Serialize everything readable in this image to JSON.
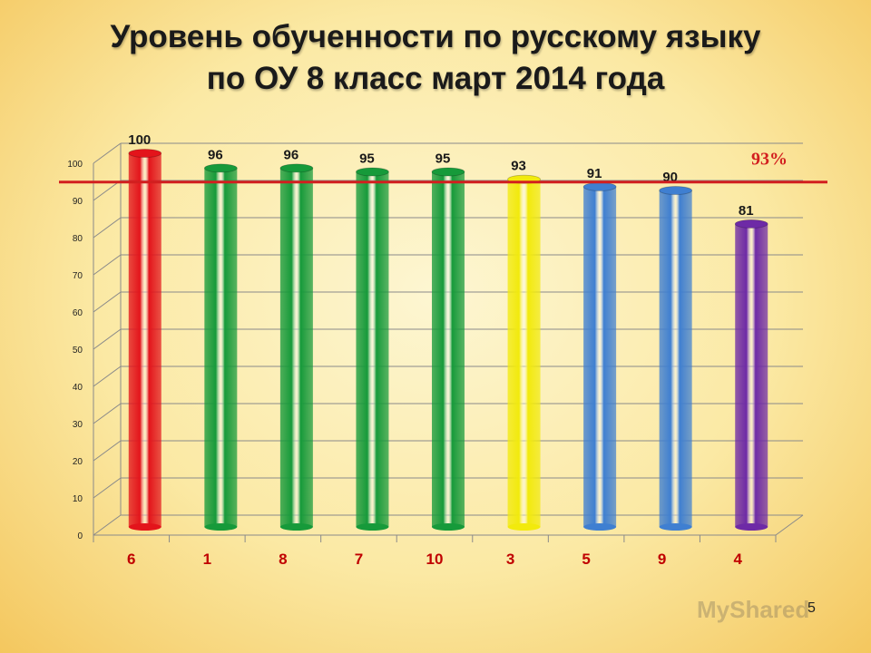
{
  "slide": {
    "title_line1": "Уровень обученности по русскому языку",
    "title_line2": "по ОУ 8 класс март 2014 года",
    "watermark": "MyShared",
    "page_number": "5"
  },
  "chart_data": {
    "type": "bar",
    "title": "Уровень обученности по русскому языку по ОУ 8 класс март 2014 года",
    "categories": [
      "6",
      "1",
      "8",
      "7",
      "10",
      "3",
      "5",
      "9",
      "4"
    ],
    "values": [
      100,
      96,
      96,
      95,
      95,
      93,
      91,
      90,
      81
    ],
    "value_labels": [
      "100",
      "96",
      "96",
      "95",
      "95",
      "93",
      "91",
      "90",
      "81"
    ],
    "bar_colors": [
      "#e3141b",
      "#169a3a",
      "#169a3a",
      "#169a3a",
      "#169a3a",
      "#f2ea0c",
      "#3f7fd1",
      "#3f7fd1",
      "#6e2aa6"
    ],
    "ylim": [
      0,
      100
    ],
    "yticks": [
      0,
      10,
      20,
      30,
      40,
      50,
      60,
      70,
      80,
      90,
      100
    ],
    "grid": true,
    "reference_line": {
      "value": 93,
      "label": "93%",
      "color": "#d21f1f"
    }
  }
}
